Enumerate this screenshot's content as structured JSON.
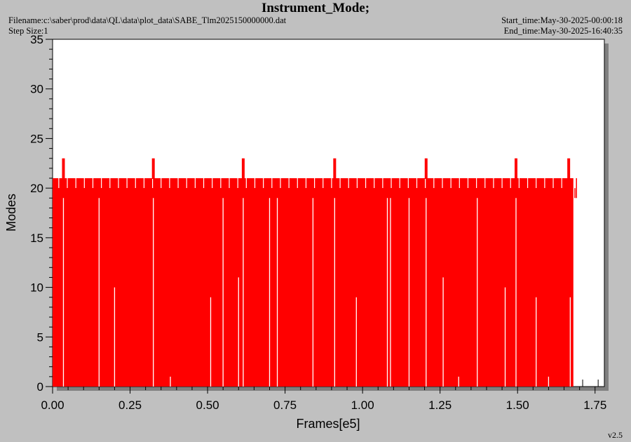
{
  "header": {
    "title": "Instrument_Mode;",
    "filename": "Filename:c:\\saber\\prod\\data\\QL\\data\\plot_data\\SABE_Tlm2025150000000.dat",
    "step_size": "Step Size:1",
    "start_time": "Start_time:May-30-2025-00:00:18",
    "end_time": "End_time:May-30-2025-16:40:35"
  },
  "footer": {
    "version": "v2.5"
  },
  "colors": {
    "series": "#ff0000",
    "background": "#c0c0c0",
    "plot_area": "#ffffff"
  },
  "chart_data": {
    "type": "bar",
    "title": "Instrument_Mode;",
    "xlabel": "Frames[e5]",
    "ylabel": "Modes",
    "xlim": [
      0,
      1.78
    ],
    "ylim": [
      0,
      35
    ],
    "x_ticks": [
      0.0,
      0.25,
      0.5,
      0.75,
      1.0,
      1.25,
      1.5,
      1.75
    ],
    "x_tick_labels": [
      "0.00",
      "0.25",
      "0.50",
      "0.75",
      "1.00",
      "1.25",
      "1.50",
      "1.75"
    ],
    "y_ticks": [
      0,
      5,
      10,
      15,
      20,
      25,
      30,
      35
    ],
    "y_tick_labels": [
      "0",
      "5",
      "10",
      "15",
      "20",
      "25",
      "30",
      "35"
    ],
    "baseline_mode": 21,
    "data_end_frame": 1.68,
    "peaks": [
      {
        "x": 0.035,
        "y": 23
      },
      {
        "x": 0.325,
        "y": 23
      },
      {
        "x": 0.615,
        "y": 23
      },
      {
        "x": 0.91,
        "y": 23
      },
      {
        "x": 1.205,
        "y": 23
      },
      {
        "x": 1.495,
        "y": 23
      },
      {
        "x": 1.665,
        "y": 23
      }
    ],
    "dips": [
      {
        "x": 0.035,
        "y": 19
      },
      {
        "x": 0.15,
        "y": 19
      },
      {
        "x": 0.2,
        "y": 10
      },
      {
        "x": 0.325,
        "y": 19
      },
      {
        "x": 0.38,
        "y": 1
      },
      {
        "x": 0.51,
        "y": 9
      },
      {
        "x": 0.55,
        "y": 19
      },
      {
        "x": 0.6,
        "y": 11
      },
      {
        "x": 0.615,
        "y": 19
      },
      {
        "x": 0.7,
        "y": 19
      },
      {
        "x": 0.725,
        "y": 19
      },
      {
        "x": 0.84,
        "y": 19
      },
      {
        "x": 0.91,
        "y": 19
      },
      {
        "x": 0.98,
        "y": 9
      },
      {
        "x": 1.08,
        "y": 19
      },
      {
        "x": 1.09,
        "y": 19
      },
      {
        "x": 1.15,
        "y": 19
      },
      {
        "x": 1.205,
        "y": 19
      },
      {
        "x": 1.26,
        "y": 11
      },
      {
        "x": 1.31,
        "y": 1
      },
      {
        "x": 1.37,
        "y": 19
      },
      {
        "x": 1.46,
        "y": 10
      },
      {
        "x": 1.495,
        "y": 19
      },
      {
        "x": 1.56,
        "y": 9
      },
      {
        "x": 1.6,
        "y": 1
      },
      {
        "x": 1.67,
        "y": 9
      }
    ],
    "grid": false,
    "legend": "none"
  }
}
